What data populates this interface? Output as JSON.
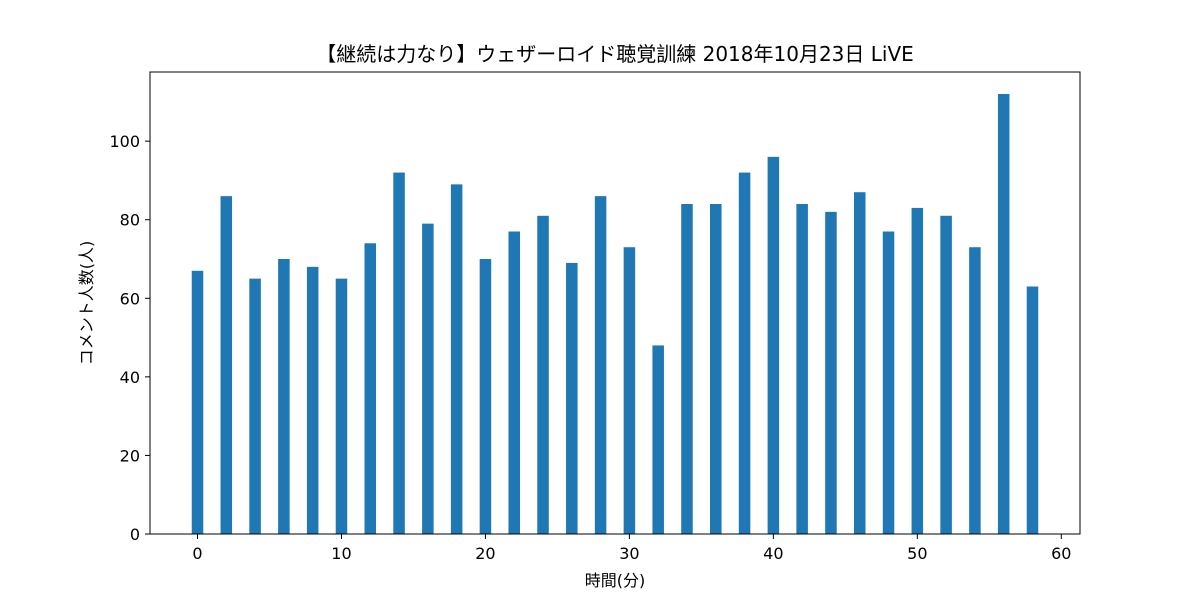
{
  "chart_data": {
    "type": "bar",
    "title": "【継続は力なり】ウェザーロイド聴覚訓練 2018年10月23日 LiVE",
    "xlabel": "時間(分)",
    "ylabel": "コメント人数(人)",
    "xlim": [
      -3.3,
      61.3
    ],
    "ylim": [
      0,
      117.6
    ],
    "x_ticks": [
      0,
      10,
      20,
      30,
      40,
      50,
      60
    ],
    "y_ticks": [
      0,
      20,
      40,
      60,
      80,
      100
    ],
    "bar_width": 0.8,
    "color": "#1f77b4",
    "grid": false,
    "x": [
      0,
      2,
      4,
      6,
      8,
      10,
      12,
      14,
      16,
      18,
      20,
      22,
      24,
      26,
      28,
      30,
      32,
      34,
      36,
      38,
      40,
      42,
      44,
      46,
      48,
      50,
      52,
      54,
      56,
      58
    ],
    "values": [
      67,
      86,
      65,
      70,
      68,
      65,
      74,
      92,
      79,
      89,
      70,
      77,
      81,
      69,
      86,
      73,
      48,
      84,
      84,
      92,
      96,
      84,
      82,
      87,
      77,
      83,
      81,
      73,
      112,
      63
    ]
  }
}
